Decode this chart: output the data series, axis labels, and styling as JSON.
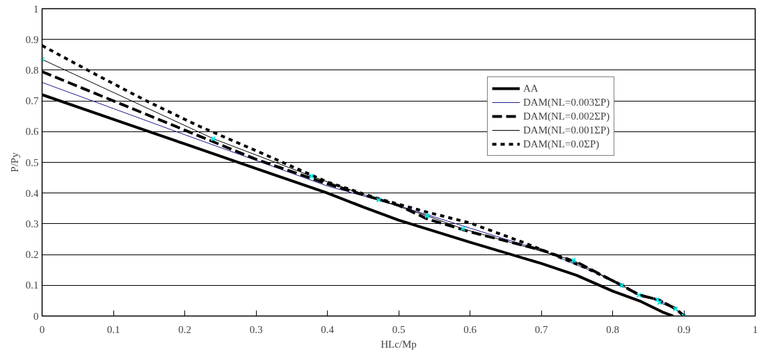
{
  "chart_data": {
    "type": "line",
    "xlabel": "HLc/Mp",
    "ylabel": "P/Py",
    "xlim": [
      0,
      1
    ],
    "ylim": [
      0,
      1
    ],
    "xticks": [
      0,
      0.1,
      0.2,
      0.3,
      0.4,
      0.5,
      0.6,
      0.7,
      0.8,
      0.9,
      1
    ],
    "yticks": [
      0,
      0.1,
      0.2,
      0.3,
      0.4,
      0.5,
      0.6,
      0.7,
      0.8,
      0.9,
      1
    ],
    "grid": "y",
    "legend": "top right",
    "series": [
      {
        "name": "AA",
        "color": "#000000",
        "line_style": "solid",
        "x": [
          0,
          0.1,
          0.2,
          0.3,
          0.4,
          0.45,
          0.5,
          0.6,
          0.7,
          0.75,
          0.8,
          0.84,
          0.87,
          0.885
        ],
        "values": [
          0.72,
          0.64,
          0.56,
          0.48,
          0.4,
          0.355,
          0.312,
          0.24,
          0.171,
          0.132,
          0.081,
          0.047,
          0.013,
          0
        ]
      },
      {
        "name": "DAM(NL=0.003ΣP)",
        "color": "#1a1a8c",
        "line_style": "solid",
        "x": [
          0,
          0.2,
          0.4,
          0.5,
          0.6,
          0.7,
          0.78,
          0.813,
          0.838,
          0.864,
          0.889,
          0.9
        ],
        "values": [
          0.76,
          0.59,
          0.423,
          0.359,
          0.286,
          0.214,
          0.137,
          0.1,
          0.068,
          0.053,
          0.023,
          0
        ]
      },
      {
        "name": "DAM(NL=0.002ΣP)",
        "color": "#000000",
        "line_style": "dashed",
        "x": [
          0,
          0.1,
          0.2,
          0.3,
          0.4,
          0.5,
          0.54,
          0.6,
          0.7,
          0.75,
          0.8,
          0.813,
          0.838,
          0.864,
          0.889,
          0.9
        ],
        "values": [
          0.795,
          0.7,
          0.605,
          0.51,
          0.43,
          0.36,
          0.316,
          0.274,
          0.215,
          0.175,
          0.115,
          0.1,
          0.068,
          0.053,
          0.023,
          0
        ]
      },
      {
        "name": "DAM(NL=0.001ΣP)",
        "color": "#000000",
        "line_style": "solid",
        "marker": "cross",
        "colors": [
          "#00e5e5",
          "#00e5e5",
          "#00e5e5",
          "#00e5e5",
          "#00e5e5",
          "#00e5e5",
          "#00e5e5",
          "#00e5e5",
          "#00e5e5",
          "#00e5e5",
          "#00e5e5",
          "#00e5e5",
          "#00e5e5"
        ],
        "x": [
          0,
          0.24,
          0.378,
          0.472,
          0.54,
          0.59,
          0.745,
          0.813,
          0.837,
          0.863,
          0.866,
          0.888,
          0.9
        ],
        "values": [
          0.835,
          0.577,
          0.455,
          0.378,
          0.326,
          0.284,
          0.181,
          0.1,
          0.068,
          0.053,
          0.044,
          0.023,
          0
        ]
      },
      {
        "name": "DAM(NL=0.0ΣP)",
        "color": "#000000",
        "line_style": "dotted",
        "x": [
          0,
          0.072,
          0.142,
          0.218,
          0.3,
          0.4,
          0.47,
          0.54,
          0.6,
          0.68,
          0.7,
          0.765,
          0.8,
          0.813,
          0.838,
          0.864,
          0.889,
          0.9
        ],
        "values": [
          0.88,
          0.79,
          0.705,
          0.62,
          0.538,
          0.436,
          0.383,
          0.338,
          0.303,
          0.235,
          0.216,
          0.154,
          0.115,
          0.1,
          0.068,
          0.053,
          0.023,
          0
        ]
      }
    ]
  }
}
